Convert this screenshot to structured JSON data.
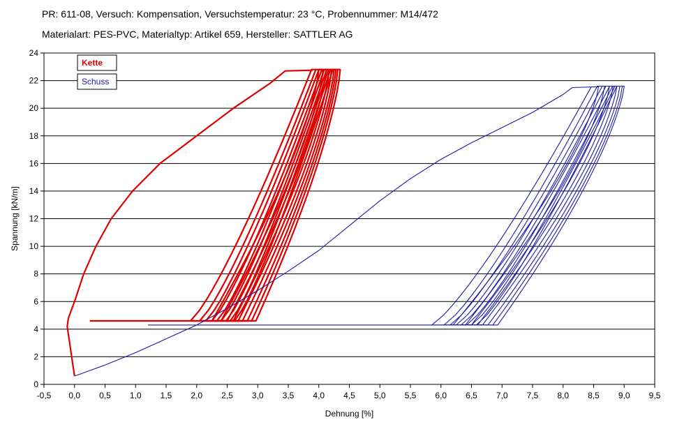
{
  "header": {
    "line1": "PR: 611-08, Versuch: Kompensation, Versuchstemperatur: 23 °C, Probennummer: M14/472",
    "line2": "Materialart: PES-PVC, Materialtyp: Artikel 659, Hersteller: SATTLER AG"
  },
  "chart_data": {
    "type": "line",
    "xlabel": "Dehnung [%]",
    "ylabel": "Spannung [kN/m]",
    "xlim": [
      -0.5,
      9.5
    ],
    "ylim": [
      0,
      24
    ],
    "x_ticks": [
      "-0,5",
      "0,0",
      "0,5",
      "1,0",
      "1,5",
      "2,0",
      "2,5",
      "3,0",
      "3,5",
      "4,0",
      "4,5",
      "5,0",
      "5,5",
      "6,0",
      "6,5",
      "7,0",
      "7,5",
      "8,0",
      "8,5",
      "9,0",
      "9,5"
    ],
    "y_ticks": [
      "0",
      "2",
      "4",
      "6",
      "8",
      "10",
      "12",
      "14",
      "16",
      "18",
      "20",
      "22",
      "24"
    ],
    "grid": "horizontal",
    "legend_position": "top-left",
    "series": [
      {
        "name": "Kette",
        "color": "#e00000",
        "initial_loading": [
          [
            0.0,
            0.6
          ],
          [
            -0.03,
            1.5
          ],
          [
            -0.08,
            3.0
          ],
          [
            -0.12,
            4.2
          ],
          [
            -0.1,
            4.8
          ],
          [
            0.0,
            6.0
          ],
          [
            0.15,
            8.0
          ],
          [
            0.35,
            10.0
          ],
          [
            0.6,
            12.0
          ],
          [
            0.95,
            14.0
          ],
          [
            1.4,
            16.0
          ],
          [
            2.0,
            18.0
          ],
          [
            2.6,
            20.0
          ],
          [
            3.2,
            21.8
          ],
          [
            3.45,
            22.7
          ],
          [
            3.9,
            22.75
          ]
        ],
        "cycles": [
          {
            "xLow": 1.9,
            "xHigh": 4.0,
            "yHigh": 22.8
          },
          {
            "xLow": 2.05,
            "xHigh": 4.07,
            "yHigh": 22.8
          },
          {
            "xLow": 2.15,
            "xHigh": 4.12,
            "yHigh": 22.8
          },
          {
            "xLow": 2.25,
            "xHigh": 4.17,
            "yHigh": 22.8
          },
          {
            "xLow": 2.33,
            "xHigh": 4.21,
            "yHigh": 22.8
          },
          {
            "xLow": 2.4,
            "xHigh": 4.25,
            "yHigh": 22.8
          },
          {
            "xLow": 2.48,
            "xHigh": 4.28,
            "yHigh": 22.8
          },
          {
            "xLow": 2.55,
            "xHigh": 4.31,
            "yHigh": 22.8
          },
          {
            "xLow": 2.62,
            "xHigh": 4.35,
            "yHigh": 22.8
          }
        ],
        "hold_level": 4.6,
        "hold_start_x": 0.25
      },
      {
        "name": "Schuss",
        "color": "#1a1aa8",
        "initial_loading": [
          [
            0.0,
            0.6
          ],
          [
            0.5,
            1.4
          ],
          [
            1.0,
            2.3
          ],
          [
            1.5,
            3.3
          ],
          [
            2.0,
            4.3
          ],
          [
            2.5,
            5.5
          ],
          [
            3.0,
            6.8
          ],
          [
            3.5,
            8.2
          ],
          [
            4.0,
            9.7
          ],
          [
            4.5,
            11.5
          ],
          [
            5.0,
            13.3
          ],
          [
            5.5,
            14.9
          ],
          [
            6.0,
            16.3
          ],
          [
            6.5,
            17.5
          ],
          [
            7.0,
            18.6
          ],
          [
            7.5,
            19.7
          ],
          [
            8.0,
            21.0
          ],
          [
            8.15,
            21.5
          ],
          [
            8.55,
            21.55
          ]
        ],
        "cycles": [
          {
            "xLow": 5.85,
            "xHigh": 8.58,
            "yHigh": 21.55
          },
          {
            "xLow": 6.05,
            "xHigh": 8.68,
            "yHigh": 21.6
          },
          {
            "xLow": 6.15,
            "xHigh": 8.76,
            "yHigh": 21.6
          },
          {
            "xLow": 6.25,
            "xHigh": 8.82,
            "yHigh": 21.6
          },
          {
            "xLow": 6.33,
            "xHigh": 8.88,
            "yHigh": 21.6
          },
          {
            "xLow": 6.42,
            "xHigh": 8.93,
            "yHigh": 21.6
          },
          {
            "xLow": 6.5,
            "xHigh": 8.97,
            "yHigh": 21.6
          },
          {
            "xLow": 6.58,
            "xHigh": 9.0,
            "yHigh": 21.6
          }
        ],
        "hold_level": 4.3,
        "hold_start_x": 1.2
      }
    ]
  }
}
